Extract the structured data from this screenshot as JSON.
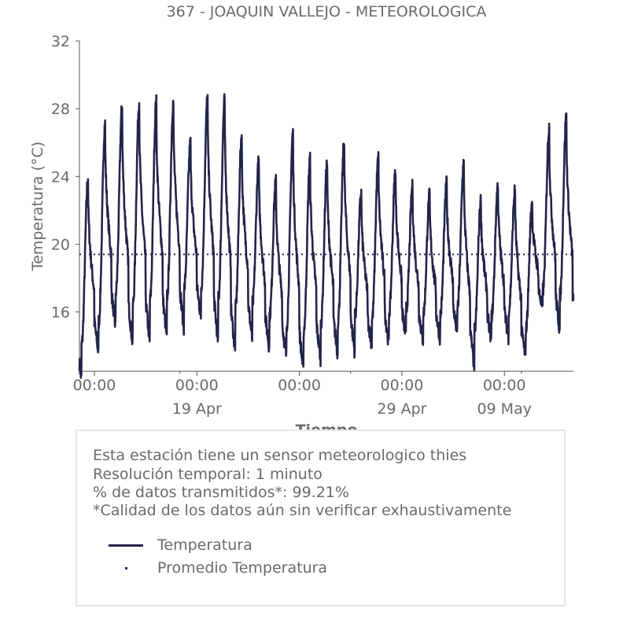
{
  "chart_data": {
    "type": "line",
    "title": "367 - JOAQUIN VALLEJO - METEOROLOGICA",
    "xlabel": "Tiempo",
    "ylabel": "Temperatura (°C)",
    "ylim": [
      12.5,
      32
    ],
    "yticks": [
      16,
      20,
      24,
      28,
      32
    ],
    "xlim": [
      "2024-04-13T03:00",
      "2024-05-12T01:00"
    ],
    "xticks_major": [
      {
        "time": "2024-04-14T00:00",
        "time_label": "00:00",
        "date_label": ""
      },
      {
        "time": "2024-04-20T00:00",
        "time_label": "00:00",
        "date_label": "19 Apr"
      },
      {
        "time": "2024-04-26T00:00",
        "time_label": "00:00",
        "date_label": ""
      },
      {
        "time": "2024-05-02T00:00",
        "time_label": "00:00",
        "date_label": "29 Apr"
      },
      {
        "time": "2024-05-08T00:00",
        "time_label": "00:00",
        "date_label": "09 May"
      }
    ],
    "xticks_minor": [
      "2024-04-19T00:00",
      "2024-04-29T00:00",
      "2024-05-09T00:00"
    ],
    "series": [
      {
        "name": "Temperatura",
        "color": "#23244a",
        "style": "solid",
        "daily_max": [
          23.9,
          27.1,
          28.1,
          28.4,
          28.4,
          28.4,
          26.0,
          28.7,
          28.5,
          26.4,
          24.9,
          23.7,
          26.6,
          25.0,
          24.8,
          26.1,
          23.0,
          25.1,
          24.3,
          23.4,
          22.9,
          23.6,
          24.8,
          22.6,
          23.5,
          23.2,
          22.5,
          26.9,
          27.5
        ],
        "daily_min": [
          14.1,
          15.4,
          17.2,
          16.5,
          16.7,
          16.9,
          17.4,
          17.5,
          16.8,
          16.2,
          16.5,
          15.8,
          15.2,
          14.9,
          15.3,
          15.5,
          15.8,
          15.6,
          16.0,
          16.2,
          15.9,
          15.9,
          16.3,
          14.9,
          15.8,
          16.1,
          15.0,
          17.3,
          17.0
        ]
      },
      {
        "name": "Promedio Temperatura",
        "color": "#23244a",
        "style": "dotted",
        "value": 19.4
      }
    ],
    "grid": false,
    "legend_position": "below chart"
  },
  "info": {
    "line1": "Esta estación tiene un sensor meteorologico thies",
    "line2": "Resolución temporal: 1 minuto",
    "line3": "% de datos transmitidos*: 99.21%",
    "line4": "*Calidad de los datos aún sin verificar exhaustivamente"
  },
  "legend": {
    "item1": "Temperatura",
    "item2": "Promedio Temperatura"
  }
}
